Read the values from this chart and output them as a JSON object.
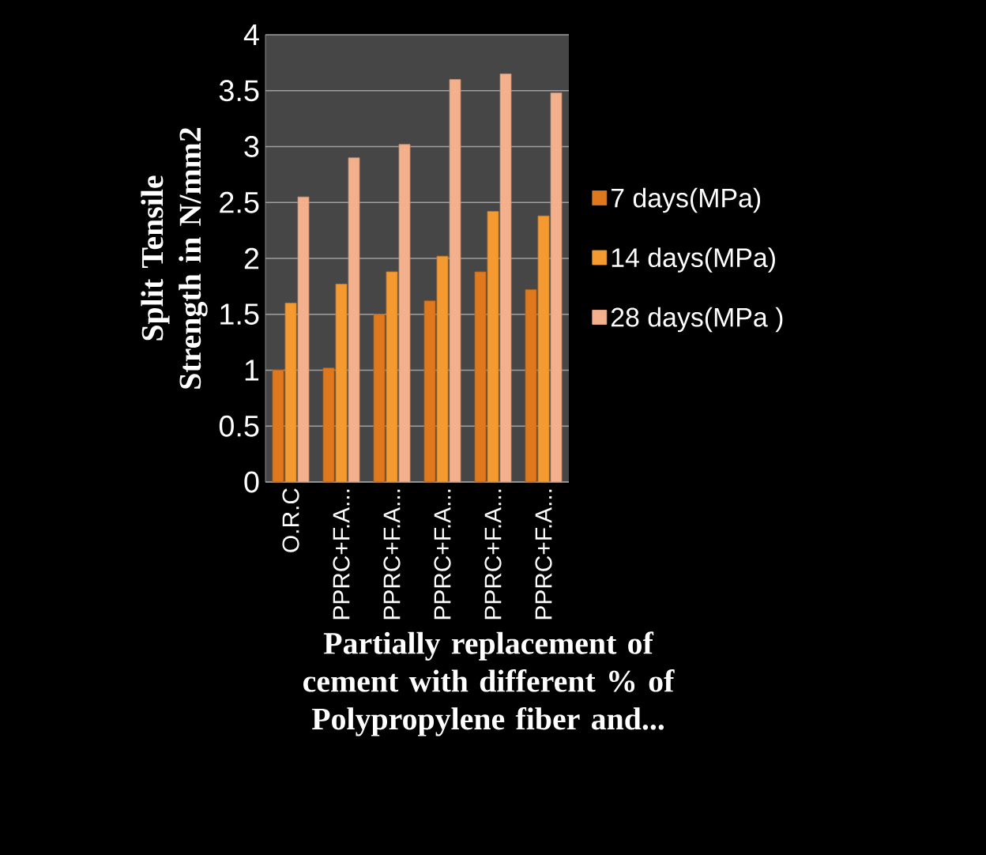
{
  "chart_data": {
    "type": "bar",
    "xlabel": "Partially replacement of cement with different % of Polypropylene fiber and...",
    "ylabel": "Split Tensile Strength in N/mm2",
    "categories": [
      "O.R.C",
      "PPRC+F.A...",
      "PPRC+F.A...",
      "PPRC+F.A...",
      "PPRC+F.A...",
      "PPRC+F.A..."
    ],
    "series": [
      {
        "name": "7 days(MPa)",
        "color": "#e0781e",
        "values": [
          1.0,
          1.02,
          1.5,
          1.62,
          1.88,
          1.72
        ]
      },
      {
        "name": "14 days(MPa)",
        "color": "#f59a30",
        "values": [
          1.6,
          1.77,
          1.88,
          2.02,
          2.42,
          2.38
        ]
      },
      {
        "name": "28 days(MPa )",
        "color": "#f2b08c",
        "values": [
          2.55,
          2.9,
          3.02,
          3.6,
          3.65,
          3.48
        ]
      }
    ],
    "ylim": [
      0,
      4
    ],
    "yticks": [
      0,
      0.5,
      1,
      1.5,
      2,
      2.5,
      3,
      3.5,
      4
    ],
    "grid": "y",
    "legend": "right"
  }
}
